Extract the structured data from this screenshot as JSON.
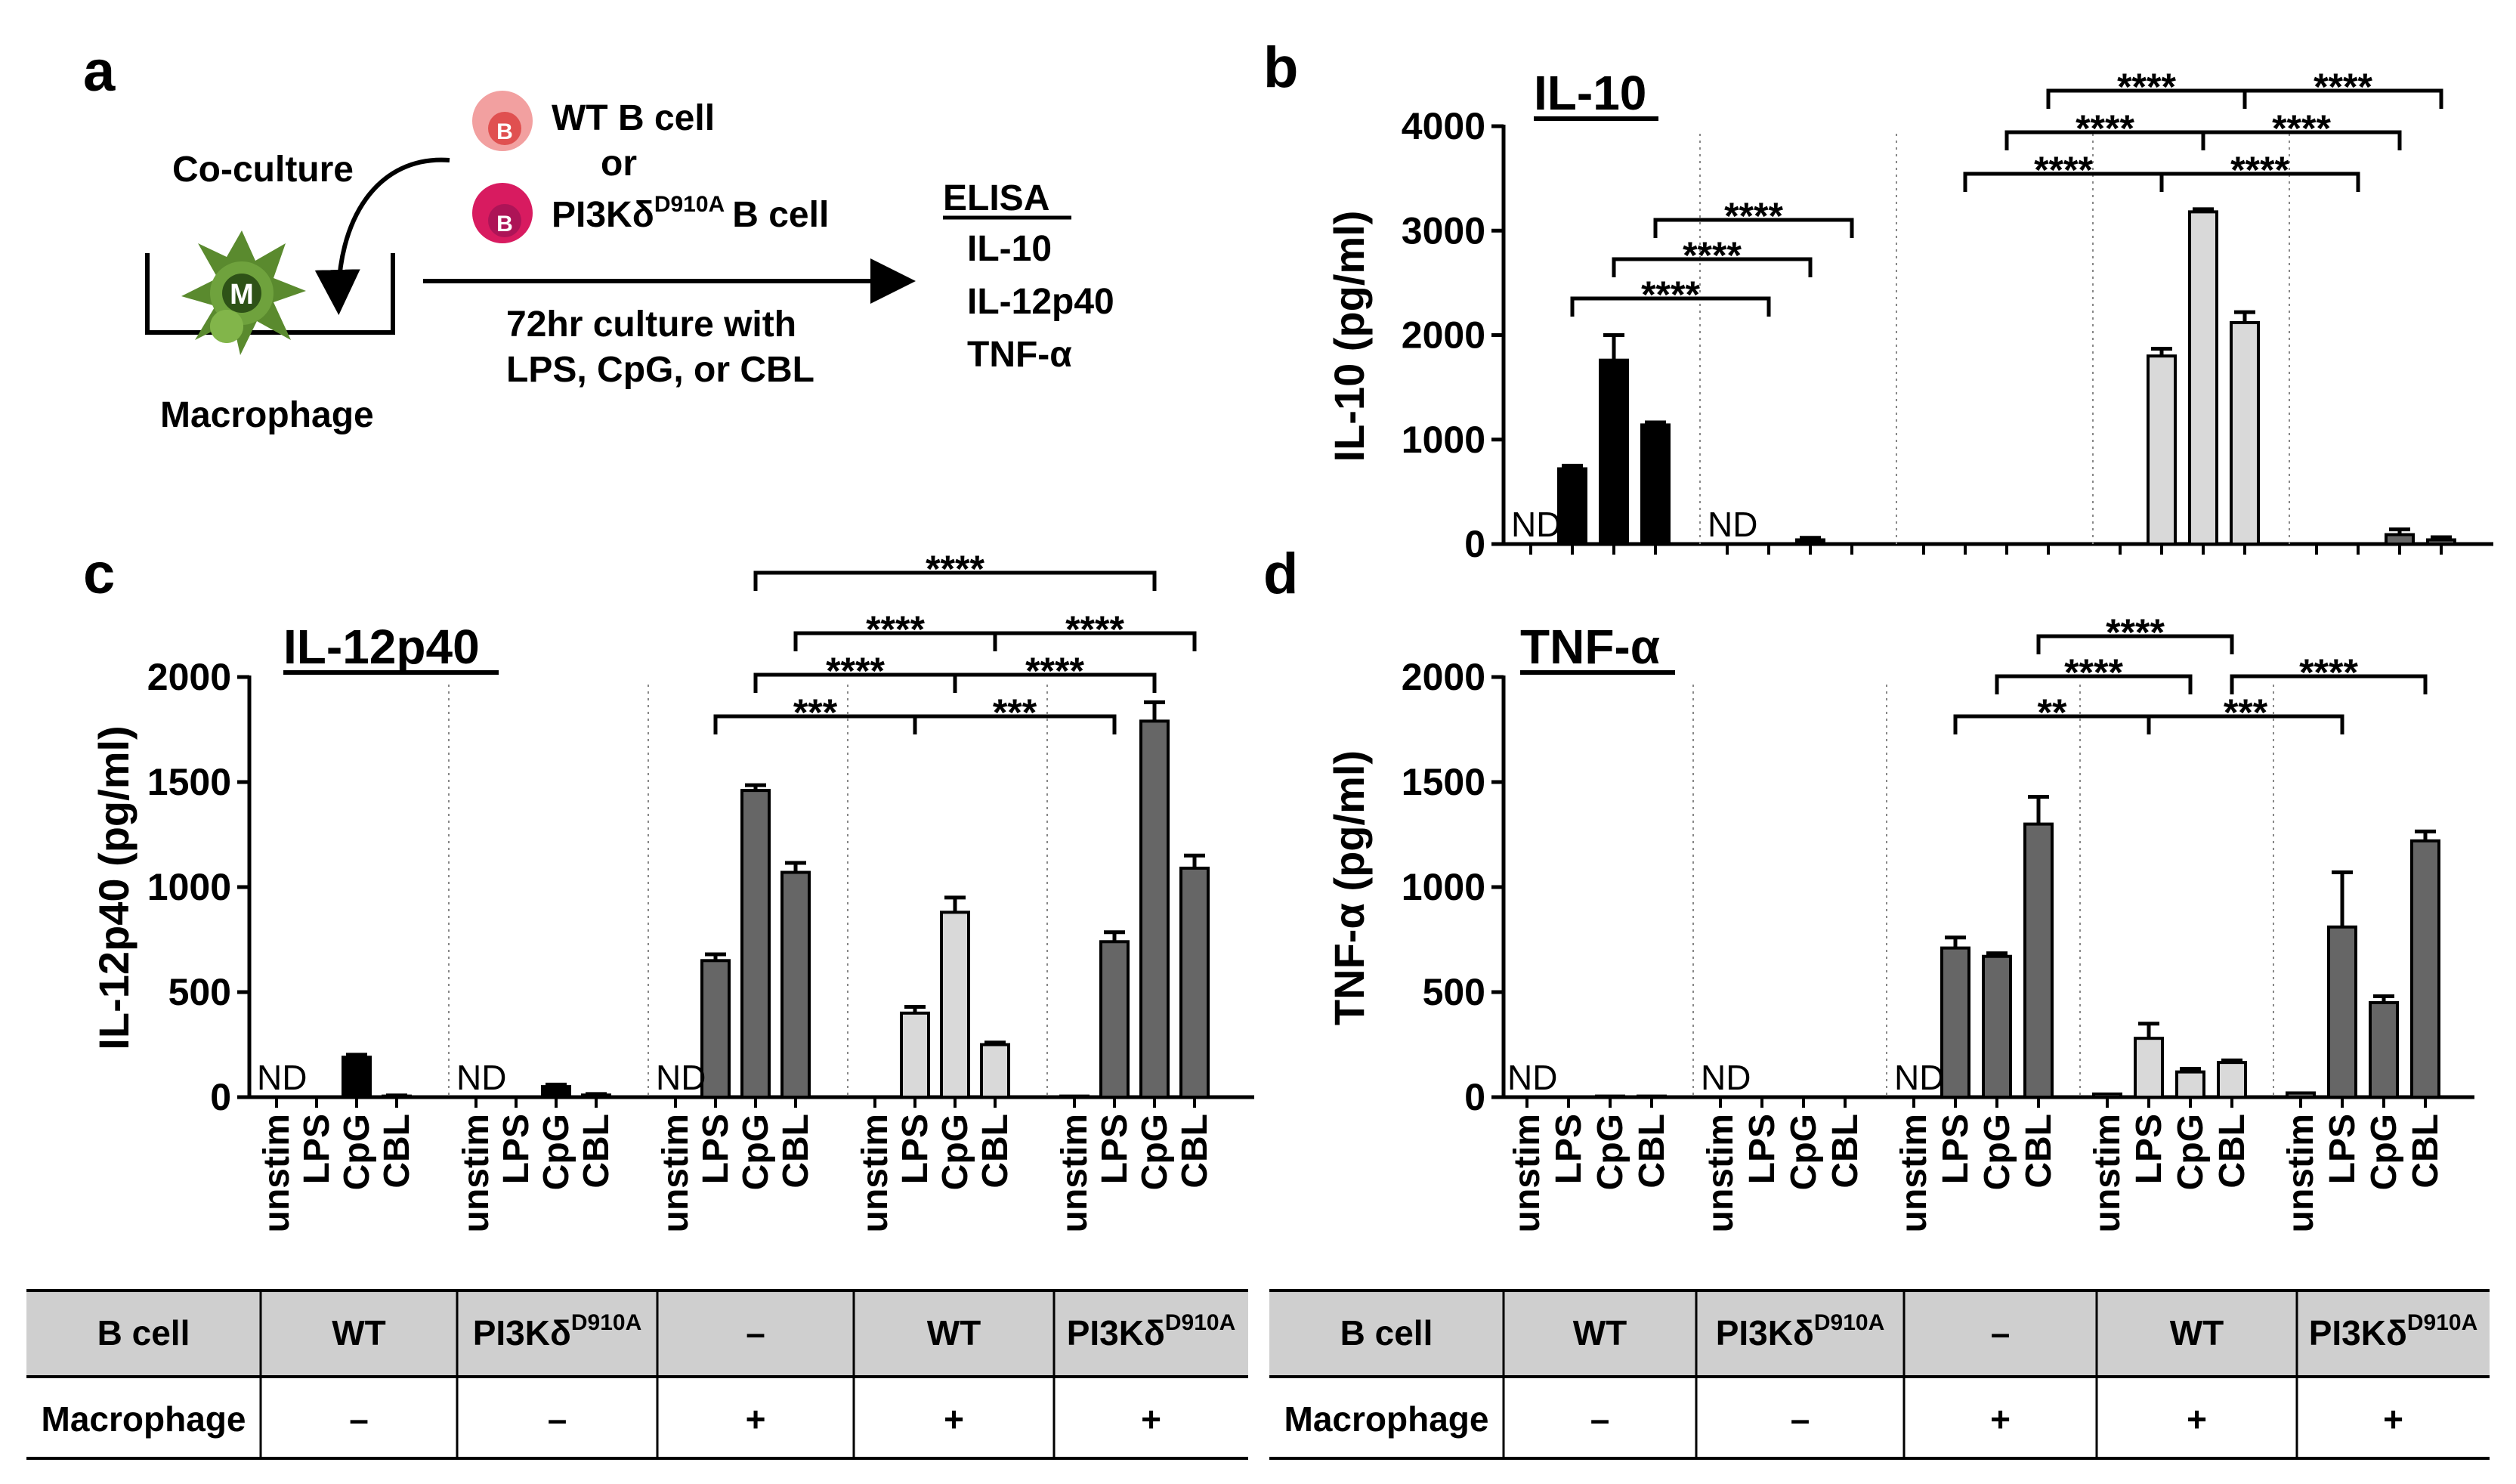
{
  "panel_a": {
    "label": "a",
    "coculture": "Co-culture",
    "wt_b_cell": "WT B cell",
    "or": "or",
    "pi3k": "PI3Kδ",
    "pi3k_sup": "D910A",
    "b_cell_suffix": "B cell",
    "b_icon": "B",
    "m_icon": "M",
    "macrophage": "Macrophage",
    "culture_line1": "72hr culture with",
    "culture_line2": "LPS, CpG, or CBL",
    "elisa": "ELISA",
    "readouts": [
      "IL-10",
      "IL-12p40",
      "TNF-α"
    ],
    "colors": {
      "wt_b": "#f2a0a0",
      "pi3k_b": "#d81b60",
      "macrophage": "#5a8a2e"
    }
  },
  "table": {
    "header": "B cell",
    "row2": "Macrophage",
    "b_cells": [
      "WT",
      "PI3Kδ",
      "–",
      "WT",
      "PI3Kδ"
    ],
    "b_cell_sups": [
      "",
      "D910A",
      "",
      "",
      "D910A"
    ],
    "macrophage": [
      "–",
      "–",
      "+",
      "+",
      "+"
    ]
  },
  "chart_data": [
    {
      "panel": "b",
      "type": "bar",
      "title": "IL-10",
      "ylabel": "IL-10 (pg/ml)",
      "ylim": [
        0,
        4000
      ],
      "yticks": [
        0,
        1000,
        2000,
        3000,
        4000
      ],
      "categories": [
        "unstim",
        "LPS",
        "CpG",
        "CBL"
      ],
      "groups": [
        {
          "values": [
            0,
            720,
            1760,
            1140
          ],
          "errors": [
            0,
            30,
            240,
            25
          ],
          "color": "#000000",
          "nd": "ND"
        },
        {
          "values": [
            0,
            0,
            40,
            0
          ],
          "errors": [
            0,
            0,
            20,
            0
          ],
          "color": "#000000",
          "nd": "ND"
        },
        {
          "values": [
            0,
            0,
            0,
            0
          ],
          "errors": [
            0,
            0,
            0,
            0
          ],
          "color": "#666666",
          "nd": ""
        },
        {
          "values": [
            0,
            1800,
            3180,
            2120
          ],
          "errors": [
            0,
            70,
            25,
            100
          ],
          "color": "#d9d9d9",
          "nd": ""
        },
        {
          "values": [
            0,
            0,
            90,
            40
          ],
          "errors": [
            0,
            0,
            50,
            25
          ],
          "color": "#666666",
          "nd": ""
        }
      ],
      "significance": [
        {
          "g1": 0,
          "g2": 1,
          "i": 1,
          "label": "****"
        },
        {
          "g1": 0,
          "g2": 1,
          "i": 2,
          "label": "****"
        },
        {
          "g1": 0,
          "g2": 1,
          "i": 3,
          "label": "****"
        },
        {
          "g1": 2,
          "g2": 3,
          "i": 1,
          "label": "****"
        },
        {
          "g1": 2,
          "g2": 3,
          "i": 2,
          "label": "****"
        },
        {
          "g1": 2,
          "g2": 3,
          "i": 3,
          "label": "****"
        },
        {
          "g1": 3,
          "g2": 4,
          "i": 1,
          "label": "****"
        },
        {
          "g1": 3,
          "g2": 4,
          "i": 2,
          "label": "****"
        },
        {
          "g1": 3,
          "g2": 4,
          "i": 3,
          "label": "****"
        }
      ]
    },
    {
      "panel": "c",
      "type": "bar",
      "title": "IL-12p40",
      "ylabel": "IL-12p40 (pg/ml)",
      "ylim": [
        0,
        2000
      ],
      "yticks": [
        0,
        500,
        1000,
        1500,
        2000
      ],
      "categories": [
        "unstim",
        "LPS",
        "CpG",
        "CBL"
      ],
      "groups": [
        {
          "values": [
            0,
            0,
            190,
            5
          ],
          "errors": [
            0,
            0,
            12,
            3
          ],
          "color": "#000000",
          "nd": "ND"
        },
        {
          "values": [
            0,
            0,
            50,
            10
          ],
          "errors": [
            0,
            0,
            10,
            5
          ],
          "color": "#000000",
          "nd": "ND"
        },
        {
          "values": [
            0,
            650,
            1460,
            1070
          ],
          "errors": [
            0,
            30,
            25,
            45
          ],
          "color": "#666666",
          "nd": "ND"
        },
        {
          "values": [
            0,
            400,
            880,
            250
          ],
          "errors": [
            0,
            30,
            70,
            10
          ],
          "color": "#d9d9d9",
          "nd": ""
        },
        {
          "values": [
            5,
            740,
            1790,
            1090
          ],
          "errors": [
            0,
            45,
            90,
            60
          ],
          "color": "#666666",
          "nd": ""
        }
      ],
      "significance": [
        {
          "g1": 2,
          "g2": 3,
          "i": 1,
          "label": "***"
        },
        {
          "g1": 2,
          "g2": 3,
          "i": 2,
          "label": "****"
        },
        {
          "g1": 2,
          "g2": 3,
          "i": 3,
          "label": "****"
        },
        {
          "g1": 3,
          "g2": 4,
          "i": 1,
          "label": "***"
        },
        {
          "g1": 3,
          "g2": 4,
          "i": 2,
          "label": "****"
        },
        {
          "g1": 3,
          "g2": 4,
          "i": 3,
          "label": "****"
        },
        {
          "g1": 2,
          "g2": 4,
          "i": 2,
          "label": "****"
        }
      ]
    },
    {
      "panel": "d",
      "type": "bar",
      "title": "TNF-α",
      "ylabel": "TNF-α (pg/ml)",
      "ylim": [
        0,
        2000
      ],
      "yticks": [
        0,
        500,
        1000,
        1500,
        2000
      ],
      "categories": [
        "unstim",
        "LPS",
        "CpG",
        "CBL"
      ],
      "groups": [
        {
          "values": [
            0,
            0,
            5,
            5
          ],
          "errors": [
            0,
            0,
            0,
            0
          ],
          "color": "#000000",
          "nd": "ND"
        },
        {
          "values": [
            0,
            0,
            0,
            0
          ],
          "errors": [
            0,
            0,
            0,
            0
          ],
          "color": "#000000",
          "nd": "ND"
        },
        {
          "values": [
            0,
            710,
            670,
            1300
          ],
          "errors": [
            0,
            50,
            15,
            130
          ],
          "color": "#666666",
          "nd": "ND"
        },
        {
          "values": [
            15,
            280,
            120,
            165
          ],
          "errors": [
            0,
            70,
            15,
            10
          ],
          "color": "#d9d9d9",
          "nd": ""
        },
        {
          "values": [
            20,
            810,
            450,
            1220
          ],
          "errors": [
            0,
            260,
            30,
            45
          ],
          "color": "#666666",
          "nd": ""
        }
      ],
      "significance": [
        {
          "g1": 2,
          "g2": 3,
          "i": 1,
          "label": "**"
        },
        {
          "g1": 2,
          "g2": 3,
          "i": 2,
          "label": "****"
        },
        {
          "g1": 2,
          "g2": 3,
          "i": 3,
          "label": "****"
        },
        {
          "g1": 3,
          "g2": 4,
          "i": 1,
          "label": "***"
        },
        {
          "g1": 3,
          "g2": 4,
          "i": 3,
          "label": "****"
        }
      ]
    }
  ]
}
